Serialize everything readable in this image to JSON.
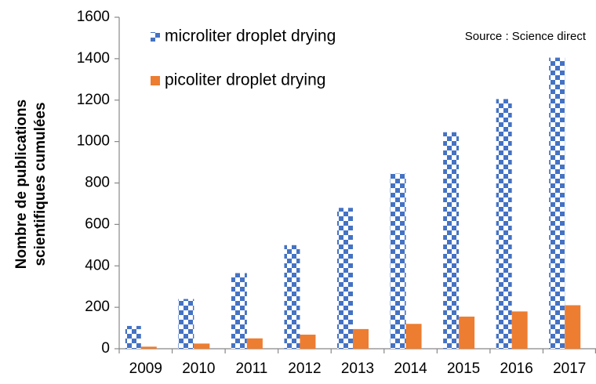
{
  "chart_data": {
    "type": "bar",
    "ylabel": [
      "Nombre de publications",
      "scientifiques cumulées"
    ],
    "annotation": "Source : Science direct",
    "categories": [
      "2009",
      "2010",
      "2011",
      "2012",
      "2013",
      "2014",
      "2015",
      "2016",
      "2017"
    ],
    "series": [
      {
        "name": "microliter droplet drying",
        "color": "#4472c4",
        "pattern": "checkerboard",
        "values": [
          110,
          240,
          365,
          500,
          680,
          845,
          1045,
          1205,
          1405
        ]
      },
      {
        "name": "picoliter droplet drying",
        "color": "#ed7d31",
        "values": [
          10,
          25,
          50,
          68,
          95,
          120,
          155,
          180,
          210
        ]
      }
    ],
    "ylim": [
      0,
      1600
    ],
    "yticks": [
      0,
      200,
      400,
      600,
      800,
      1000,
      1200,
      1400,
      1600
    ],
    "grid": false,
    "legend": "top-left"
  }
}
